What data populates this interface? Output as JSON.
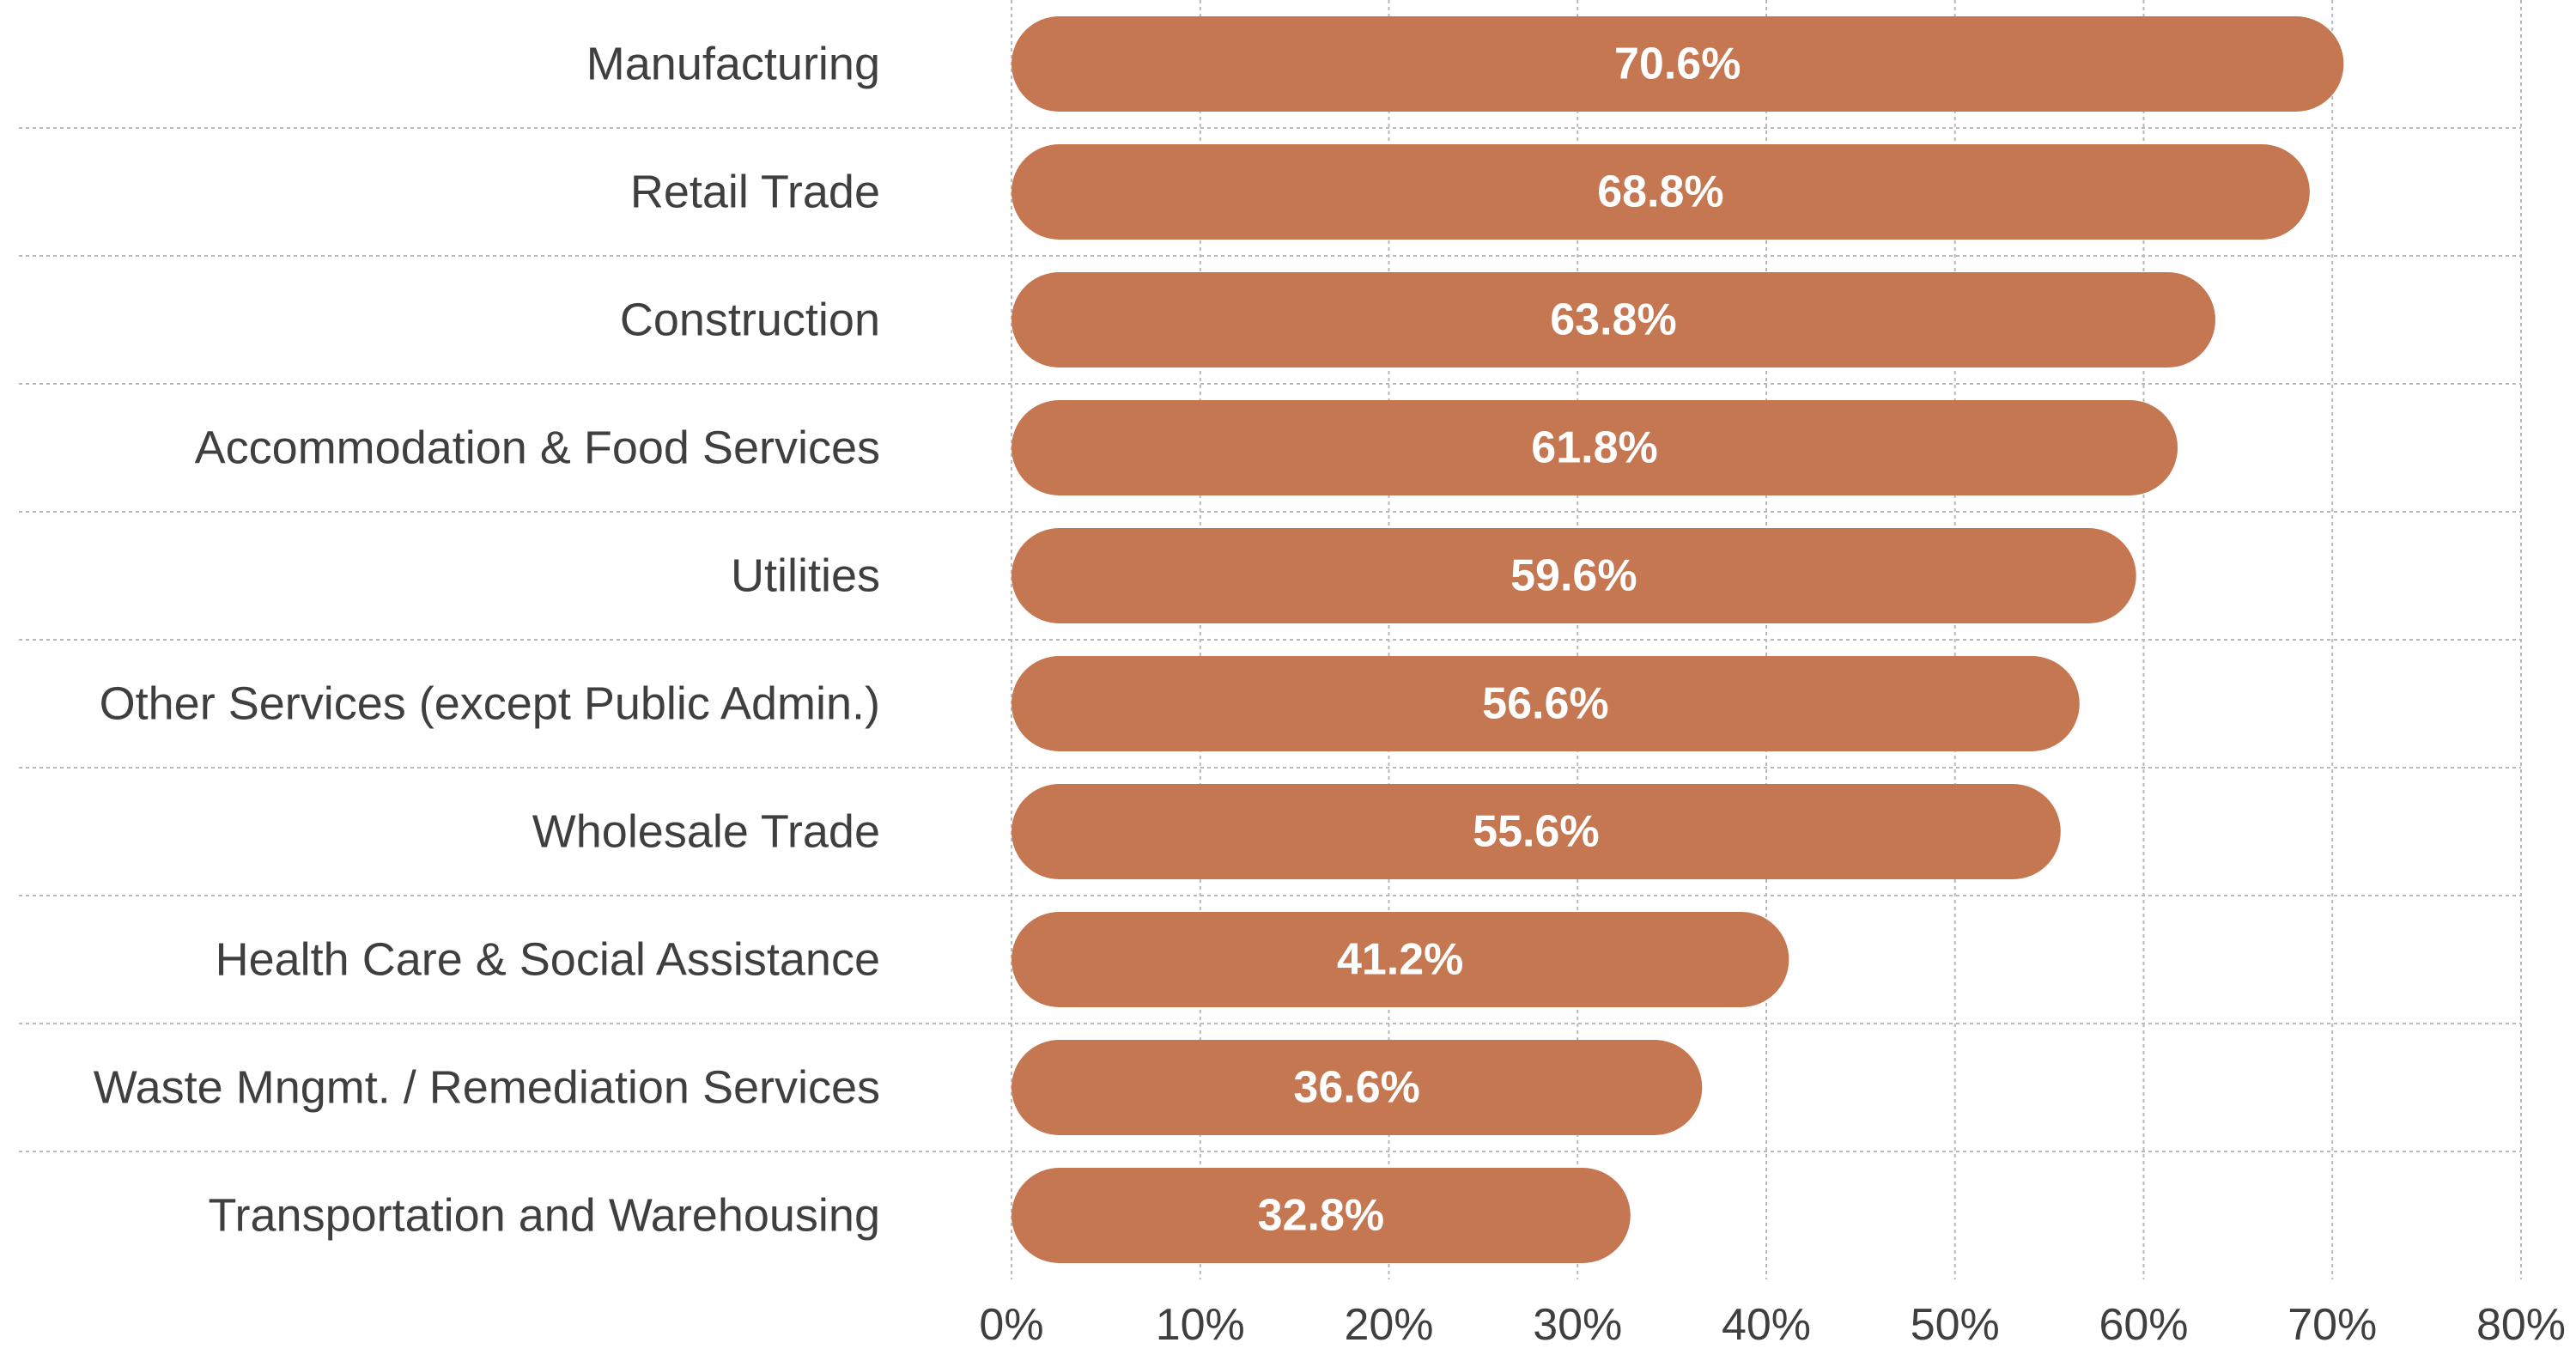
{
  "chart_data": {
    "type": "bar",
    "orientation": "horizontal",
    "title": "",
    "xlabel": "",
    "ylabel": "",
    "categories": [
      "Manufacturing",
      "Retail Trade",
      "Construction",
      "Accommodation & Food Services",
      "Utilities",
      "Other Services (except Public Admin.)",
      "Wholesale Trade",
      "Health Care & Social Assistance",
      "Waste Mngmt. / Remediation Services",
      "Transportation and Warehousing"
    ],
    "values": [
      70.6,
      68.8,
      63.8,
      61.8,
      59.6,
      56.6,
      55.6,
      41.2,
      36.6,
      32.8
    ],
    "value_labels": [
      "70.6%",
      "68.8%",
      "63.8%",
      "61.8%",
      "59.6%",
      "56.6%",
      "55.6%",
      "41.2%",
      "36.6%",
      "32.8%"
    ],
    "xlim": [
      0,
      80
    ],
    "x_ticks": [
      0,
      10,
      20,
      30,
      40,
      50,
      60,
      70,
      80
    ],
    "x_tick_labels": [
      "0%",
      "10%",
      "20%",
      "30%",
      "40%",
      "50%",
      "60%",
      "70%",
      "80%"
    ],
    "grid": true,
    "legend": "none",
    "bar_color": "#c47751",
    "value_label_color": "#ffffff",
    "text_color": "#3f3f3f",
    "grid_color": "#b9b9b9"
  }
}
